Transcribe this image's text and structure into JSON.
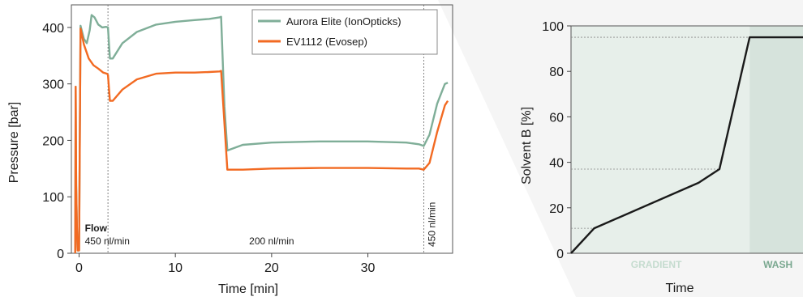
{
  "colors": {
    "aurora": "#7fae98",
    "evosep": "#f26a22",
    "gradient_zone": "#e7efea",
    "wash_zone": "#d6e3dc",
    "gradient_text": "#c5dccf",
    "wash_text": "#7aa890",
    "profile_line": "#1a1a1a"
  },
  "chart_data": [
    {
      "type": "line",
      "xlabel": "Time [min]",
      "ylabel": "Pressure [bar]",
      "xlim": [
        -0.8,
        38.8
      ],
      "ylim": [
        0,
        440
      ],
      "xticks": [
        0,
        10,
        20,
        30
      ],
      "yticks": [
        0,
        100,
        200,
        300,
        400
      ],
      "grid": false,
      "legend_position": "top-right",
      "vlines": [
        3,
        35.8
      ],
      "flow_title": "Flow",
      "flow_labels": [
        {
          "text": "450 nl/min",
          "x": 0.6,
          "rotated": false
        },
        {
          "text": "200 nl/min",
          "x": 20,
          "rotated": false
        },
        {
          "text": "450 nl/min",
          "x": 37,
          "rotated": true
        }
      ],
      "series": [
        {
          "name": "Aurora Elite (IonOpticks)",
          "color_key": "aurora",
          "x": [
            -0.4,
            -0.35,
            -0.3,
            -0.22,
            -0.15,
            0,
            0.15,
            0.5,
            0.8,
            1.1,
            1.3,
            1.6,
            2.0,
            2.4,
            2.8,
            3.0,
            3.2,
            3.5,
            4.5,
            6,
            8,
            10,
            12,
            13.5,
            14.6,
            14.75,
            15.1,
            15.4,
            17,
            20,
            25,
            30,
            34,
            35.3,
            35.8,
            36.4,
            37.2,
            38.0,
            38.3
          ],
          "y": [
            0,
            295,
            120,
            40,
            5,
            5,
            403,
            380,
            372,
            395,
            422,
            418,
            405,
            400,
            401,
            400,
            345,
            345,
            372,
            392,
            405,
            410,
            413,
            415,
            418,
            419,
            260,
            182,
            192,
            196,
            198,
            198,
            196,
            193,
            190,
            210,
            265,
            300,
            302
          ]
        },
        {
          "name": "EV1112 (Evosep)",
          "color_key": "evosep",
          "x": [
            -0.4,
            -0.35,
            -0.3,
            -0.22,
            -0.15,
            0,
            0.15,
            0.5,
            1.0,
            1.5,
            2.0,
            2.5,
            2.9,
            3.0,
            3.2,
            3.5,
            4.5,
            6,
            8,
            10,
            12,
            13.5,
            14.6,
            14.75,
            15.1,
            15.4,
            17,
            20,
            25,
            30,
            34,
            35.3,
            35.8,
            36.4,
            37.2,
            38.0,
            38.3
          ],
          "y": [
            0,
            295,
            120,
            40,
            5,
            5,
            398,
            370,
            345,
            333,
            327,
            320,
            318,
            316,
            270,
            270,
            290,
            308,
            318,
            320,
            320,
            321,
            322,
            323,
            230,
            148,
            148,
            150,
            151,
            151,
            150,
            150,
            148,
            160,
            215,
            262,
            270
          ]
        }
      ]
    },
    {
      "type": "line",
      "xlabel": "Time",
      "ylabel": "Solvent B [%]",
      "ylim": [
        0,
        100
      ],
      "yticks": [
        0,
        20,
        40,
        60,
        80,
        100
      ],
      "grid": false,
      "x_ticks_shown": false,
      "zones": [
        {
          "label": "GRADIENT",
          "from": 0,
          "to": 0.77
        },
        {
          "label": "WASH",
          "from": 0.77,
          "to": 1
        }
      ],
      "x": [
        0,
        0.1,
        0.55,
        0.64,
        0.77,
        1
      ],
      "y": [
        0,
        11,
        31,
        37,
        95,
        95
      ],
      "reference_levels": [
        11,
        37,
        95
      ]
    }
  ],
  "legend": {
    "items": [
      {
        "label": "Aurora Elite (IonOpticks)",
        "color_key": "aurora"
      },
      {
        "label": "EV1112 (Evosep)",
        "color_key": "evosep"
      }
    ]
  }
}
